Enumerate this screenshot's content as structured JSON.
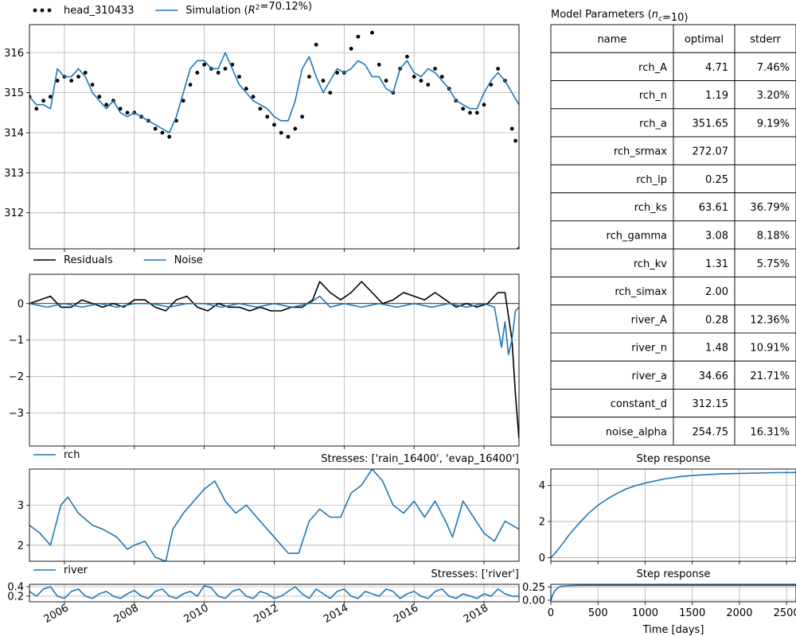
{
  "chart_data": [
    {
      "id": "head",
      "type": "line",
      "x_axis": "date",
      "xlim": [
        2005.0,
        2019.0
      ],
      "ylim": [
        311.1,
        316.7
      ],
      "yticks": [
        312,
        313,
        314,
        315,
        316
      ],
      "grid": true,
      "legend_placement": "top-left",
      "series": [
        {
          "name": "head_310433",
          "style": "dots",
          "color": "#000000",
          "x": [
            2005.0,
            2005.2,
            2005.4,
            2005.6,
            2005.8,
            2006.0,
            2006.2,
            2006.4,
            2006.6,
            2006.8,
            2007.0,
            2007.2,
            2007.4,
            2007.6,
            2007.8,
            2008.0,
            2008.2,
            2008.4,
            2008.6,
            2008.8,
            2009.0,
            2009.2,
            2009.4,
            2009.6,
            2009.8,
            2010.0,
            2010.2,
            2010.4,
            2010.6,
            2010.8,
            2011.0,
            2011.2,
            2011.4,
            2011.6,
            2011.8,
            2012.0,
            2012.2,
            2012.4,
            2012.6,
            2012.8,
            2013.0,
            2013.2,
            2013.4,
            2013.6,
            2013.8,
            2014.0,
            2014.2,
            2014.4,
            2014.6,
            2014.8,
            2015.0,
            2015.2,
            2015.4,
            2015.6,
            2015.8,
            2016.0,
            2016.2,
            2016.4,
            2016.6,
            2016.8,
            2017.0,
            2017.2,
            2017.4,
            2017.6,
            2017.8,
            2018.0,
            2018.2,
            2018.4,
            2018.6,
            2018.8,
            2018.9,
            2019.0
          ],
          "y": [
            314.9,
            314.6,
            314.8,
            314.9,
            315.3,
            315.4,
            315.3,
            315.4,
            315.5,
            315.2,
            314.9,
            314.7,
            314.8,
            314.6,
            314.5,
            314.5,
            314.4,
            314.3,
            314.1,
            314.0,
            313.9,
            314.3,
            314.8,
            315.2,
            315.5,
            315.7,
            315.6,
            315.5,
            315.6,
            315.7,
            315.4,
            315.1,
            314.9,
            314.6,
            314.4,
            314.2,
            314.0,
            313.9,
            314.1,
            314.4,
            315.4,
            316.2,
            315.3,
            315.0,
            315.5,
            315.5,
            316.1,
            316.4,
            316.8,
            316.5,
            315.7,
            315.3,
            315.0,
            315.6,
            315.9,
            315.4,
            315.3,
            315.2,
            315.6,
            315.4,
            315.1,
            314.8,
            314.6,
            314.5,
            314.5,
            314.7,
            315.2,
            315.6,
            315.3,
            314.1,
            313.8,
            311.1
          ]
        },
        {
          "name": "Simulation ($R^2$=70.12%)",
          "style": "line",
          "color": "#1f77b4",
          "x": [
            2005.0,
            2005.2,
            2005.4,
            2005.6,
            2005.8,
            2006.0,
            2006.2,
            2006.4,
            2006.6,
            2006.8,
            2007.0,
            2007.2,
            2007.4,
            2007.6,
            2007.8,
            2008.0,
            2008.2,
            2008.4,
            2008.6,
            2008.8,
            2009.0,
            2009.2,
            2009.4,
            2009.6,
            2009.8,
            2010.0,
            2010.2,
            2010.4,
            2010.6,
            2010.8,
            2011.0,
            2011.2,
            2011.4,
            2011.6,
            2011.8,
            2012.0,
            2012.2,
            2012.4,
            2012.6,
            2012.8,
            2013.0,
            2013.2,
            2013.4,
            2013.6,
            2013.8,
            2014.0,
            2014.2,
            2014.4,
            2014.6,
            2014.8,
            2015.0,
            2015.2,
            2015.4,
            2015.6,
            2015.8,
            2016.0,
            2016.2,
            2016.4,
            2016.6,
            2016.8,
            2017.0,
            2017.2,
            2017.4,
            2017.6,
            2017.8,
            2018.0,
            2018.2,
            2018.4,
            2018.6,
            2018.8,
            2019.0
          ],
          "y": [
            314.9,
            314.7,
            314.7,
            314.6,
            315.6,
            315.4,
            315.4,
            315.6,
            315.4,
            315.0,
            314.8,
            314.6,
            314.8,
            314.5,
            314.4,
            314.5,
            314.4,
            314.3,
            314.2,
            314.1,
            314.0,
            314.4,
            315.0,
            315.6,
            315.8,
            315.8,
            315.6,
            315.6,
            316.0,
            315.6,
            315.2,
            315.0,
            314.8,
            314.7,
            314.6,
            314.4,
            314.3,
            314.3,
            314.8,
            315.6,
            315.9,
            315.4,
            315.0,
            315.3,
            315.6,
            315.5,
            315.6,
            315.8,
            315.7,
            315.4,
            315.4,
            315.1,
            315.0,
            315.6,
            315.8,
            315.5,
            315.4,
            315.6,
            315.5,
            315.3,
            315.1,
            314.8,
            314.7,
            314.6,
            314.6,
            315.0,
            315.3,
            315.5,
            315.3,
            315.0,
            314.7
          ]
        }
      ]
    },
    {
      "id": "residuals",
      "type": "line",
      "x_axis": "date",
      "xlim": [
        2005.0,
        2019.0
      ],
      "ylim": [
        -3.9,
        0.8
      ],
      "yticks": [
        -3,
        -2,
        -1,
        0
      ],
      "zero_line": true,
      "grid": true,
      "legend_placement": "top-left",
      "series": [
        {
          "name": "Residuals",
          "color": "#000000",
          "x": [
            2005.0,
            2005.3,
            2005.6,
            2005.9,
            2006.2,
            2006.5,
            2006.8,
            2007.1,
            2007.4,
            2007.7,
            2008.0,
            2008.3,
            2008.6,
            2008.9,
            2009.2,
            2009.5,
            2009.8,
            2010.1,
            2010.4,
            2010.7,
            2011.0,
            2011.3,
            2011.6,
            2011.9,
            2012.2,
            2012.5,
            2012.8,
            2013.1,
            2013.3,
            2013.6,
            2013.9,
            2014.2,
            2014.5,
            2014.8,
            2015.1,
            2015.4,
            2015.7,
            2016.0,
            2016.3,
            2016.6,
            2016.9,
            2017.2,
            2017.5,
            2017.8,
            2018.1,
            2018.4,
            2018.6,
            2018.8,
            2018.9,
            2019.0
          ],
          "y": [
            0.0,
            0.1,
            0.2,
            -0.1,
            -0.1,
            0.1,
            0.0,
            -0.1,
            0.0,
            -0.1,
            0.1,
            0.1,
            -0.1,
            -0.2,
            0.1,
            0.2,
            -0.1,
            -0.2,
            0.0,
            -0.1,
            -0.1,
            -0.2,
            -0.1,
            -0.2,
            -0.2,
            -0.1,
            -0.1,
            0.1,
            0.6,
            0.3,
            0.1,
            0.3,
            0.6,
            0.3,
            0.0,
            0.1,
            0.3,
            0.2,
            0.1,
            0.3,
            0.1,
            -0.1,
            0.0,
            -0.1,
            0.0,
            0.3,
            0.3,
            -1.0,
            -2.5,
            -3.7
          ]
        },
        {
          "name": "Noise",
          "color": "#1f77b4",
          "x": [
            2005.0,
            2005.5,
            2006.0,
            2006.5,
            2007.0,
            2007.5,
            2008.0,
            2008.5,
            2009.0,
            2009.5,
            2010.0,
            2010.5,
            2011.0,
            2011.5,
            2012.0,
            2012.5,
            2013.0,
            2013.3,
            2013.6,
            2014.0,
            2014.5,
            2015.0,
            2015.5,
            2016.0,
            2016.5,
            2017.0,
            2017.5,
            2018.0,
            2018.3,
            2018.5,
            2018.6,
            2018.7,
            2018.8,
            2018.9,
            2019.0
          ],
          "y": [
            0.0,
            -0.1,
            0.0,
            -0.1,
            0.0,
            -0.1,
            0.0,
            0.0,
            -0.1,
            0.0,
            0.0,
            -0.1,
            0.0,
            -0.1,
            0.0,
            -0.1,
            0.0,
            0.2,
            -0.1,
            0.0,
            -0.1,
            0.0,
            -0.1,
            0.0,
            -0.1,
            0.0,
            -0.1,
            0.0,
            -0.1,
            -1.2,
            -0.5,
            -1.4,
            -1.0,
            -0.2,
            -0.1
          ]
        }
      ]
    },
    {
      "id": "rch",
      "type": "line",
      "x_axis": "date",
      "xlim": [
        2005.0,
        2019.0
      ],
      "ylim": [
        1.6,
        3.9
      ],
      "yticks": [
        2,
        3
      ],
      "grid": true,
      "legend_placement": "top-left",
      "title_right": "Stresses: ['rain_16400', 'evap_16400']",
      "series": [
        {
          "name": "rch",
          "color": "#1f77b4",
          "x": [
            2005.0,
            2005.3,
            2005.6,
            2005.9,
            2006.1,
            2006.4,
            2006.8,
            2007.1,
            2007.5,
            2007.8,
            2008.0,
            2008.3,
            2008.6,
            2008.9,
            2009.1,
            2009.4,
            2009.7,
            2010.0,
            2010.3,
            2010.6,
            2010.9,
            2011.2,
            2011.5,
            2011.8,
            2012.0,
            2012.4,
            2012.7,
            2013.0,
            2013.3,
            2013.6,
            2013.9,
            2014.2,
            2014.5,
            2014.8,
            2015.1,
            2015.4,
            2015.7,
            2016.0,
            2016.3,
            2016.6,
            2016.9,
            2017.1,
            2017.4,
            2017.7,
            2018.0,
            2018.3,
            2018.6,
            2018.8,
            2019.0
          ],
          "y": [
            2.5,
            2.3,
            2.0,
            3.0,
            3.2,
            2.8,
            2.5,
            2.4,
            2.2,
            1.9,
            2.0,
            2.1,
            1.7,
            1.6,
            2.4,
            2.8,
            3.1,
            3.4,
            3.6,
            3.1,
            2.8,
            3.0,
            2.7,
            2.4,
            2.2,
            1.8,
            1.8,
            2.6,
            2.9,
            2.7,
            2.7,
            3.3,
            3.5,
            3.9,
            3.6,
            3.0,
            2.8,
            3.1,
            2.7,
            3.1,
            2.6,
            2.2,
            3.1,
            2.7,
            2.3,
            2.1,
            2.6,
            2.5,
            2.4
          ]
        }
      ]
    },
    {
      "id": "river",
      "type": "line",
      "x_axis": "date",
      "xlim": [
        2005.0,
        2019.0
      ],
      "ylim": [
        0.08,
        0.45
      ],
      "yticks": [
        0.2,
        0.4
      ],
      "grid": true,
      "legend_placement": "top-left",
      "title_right": "Stresses: ['river']",
      "xticks": [
        "2006",
        "2008",
        "2010",
        "2012",
        "2014",
        "2016",
        "2018"
      ],
      "series": [
        {
          "name": "river",
          "color": "#1f77b4",
          "x": [
            2005.0,
            2005.2,
            2005.4,
            2005.6,
            2005.8,
            2006.0,
            2006.2,
            2006.4,
            2006.6,
            2006.8,
            2007.0,
            2007.2,
            2007.4,
            2007.6,
            2007.8,
            2008.0,
            2008.2,
            2008.4,
            2008.6,
            2008.8,
            2009.0,
            2009.2,
            2009.4,
            2009.6,
            2009.8,
            2010.0,
            2010.2,
            2010.4,
            2010.6,
            2010.8,
            2011.0,
            2011.2,
            2011.4,
            2011.6,
            2011.8,
            2012.0,
            2012.2,
            2012.4,
            2012.6,
            2012.8,
            2013.0,
            2013.2,
            2013.4,
            2013.6,
            2013.8,
            2014.0,
            2014.2,
            2014.4,
            2014.6,
            2014.8,
            2015.0,
            2015.2,
            2015.4,
            2015.6,
            2015.8,
            2016.0,
            2016.2,
            2016.4,
            2016.6,
            2016.8,
            2017.0,
            2017.2,
            2017.4,
            2017.6,
            2017.8,
            2018.0,
            2018.2,
            2018.4,
            2018.6,
            2018.8,
            2019.0
          ],
          "y": [
            0.3,
            0.2,
            0.35,
            0.4,
            0.2,
            0.15,
            0.3,
            0.35,
            0.2,
            0.15,
            0.25,
            0.3,
            0.2,
            0.15,
            0.25,
            0.32,
            0.2,
            0.15,
            0.3,
            0.35,
            0.2,
            0.15,
            0.25,
            0.3,
            0.2,
            0.42,
            0.38,
            0.2,
            0.15,
            0.3,
            0.35,
            0.2,
            0.15,
            0.3,
            0.25,
            0.15,
            0.2,
            0.3,
            0.4,
            0.25,
            0.15,
            0.35,
            0.25,
            0.15,
            0.3,
            0.35,
            0.2,
            0.15,
            0.3,
            0.25,
            0.2,
            0.35,
            0.3,
            0.15,
            0.25,
            0.3,
            0.2,
            0.15,
            0.3,
            0.35,
            0.2,
            0.15,
            0.25,
            0.2,
            0.15,
            0.25,
            0.2,
            0.35,
            0.25,
            0.2,
            0.2
          ]
        }
      ]
    },
    {
      "id": "step_rch",
      "type": "line",
      "title": "Step response",
      "xlim": [
        0,
        2600
      ],
      "ylim": [
        -0.2,
        4.9
      ],
      "yticks": [
        0,
        2,
        4
      ],
      "xtick_values": [
        0,
        500,
        1000,
        1500,
        2000,
        2500
      ],
      "grid": true,
      "series": [
        {
          "color": "#1f77b4",
          "x": [
            0,
            50,
            100,
            200,
            300,
            400,
            500,
            600,
            700,
            800,
            900,
            1000,
            1200,
            1400,
            1600,
            1800,
            2000,
            2200,
            2400,
            2600
          ],
          "y": [
            0,
            0.28,
            0.6,
            1.3,
            1.9,
            2.45,
            2.9,
            3.25,
            3.55,
            3.8,
            3.98,
            4.12,
            4.35,
            4.5,
            4.58,
            4.63,
            4.66,
            4.68,
            4.7,
            4.71
          ]
        }
      ]
    },
    {
      "id": "step_river",
      "type": "line",
      "title": "Step response",
      "xlim": [
        0,
        2600
      ],
      "ylim": [
        -0.03,
        0.3
      ],
      "yticks": [
        0.0,
        0.25
      ],
      "ytick_labels": [
        "0.00",
        "0.25"
      ],
      "xtick_values": [
        0,
        500,
        1000,
        1500,
        2000,
        2500
      ],
      "xlabel": "Time [days]",
      "grid": true,
      "series": [
        {
          "color": "#1f77b4",
          "x": [
            0,
            20,
            40,
            60,
            80,
            100,
            150,
            200,
            300,
            400,
            600,
            1000,
            2600
          ],
          "y": [
            0,
            0.1,
            0.17,
            0.21,
            0.24,
            0.26,
            0.27,
            0.275,
            0.28,
            0.28,
            0.28,
            0.28,
            0.28
          ]
        }
      ]
    }
  ],
  "params_table": {
    "title": "Model Parameters ($n_c$=10)",
    "columns": [
      "name",
      "optimal",
      "stderr"
    ],
    "rows": [
      [
        "rch_A",
        "4.71",
        "7.46%"
      ],
      [
        "rch_n",
        "1.19",
        "3.20%"
      ],
      [
        "rch_a",
        "351.65",
        "9.19%"
      ],
      [
        "rch_srmax",
        "272.07",
        ""
      ],
      [
        "rch_lp",
        "0.25",
        ""
      ],
      [
        "rch_ks",
        "63.61",
        "36.79%"
      ],
      [
        "rch_gamma",
        "3.08",
        "8.18%"
      ],
      [
        "rch_kv",
        "1.31",
        "5.75%"
      ],
      [
        "rch_simax",
        "2.00",
        ""
      ],
      [
        "river_A",
        "0.28",
        "12.36%"
      ],
      [
        "river_n",
        "1.48",
        "10.91%"
      ],
      [
        "river_a",
        "34.66",
        "21.71%"
      ],
      [
        "constant_d",
        "312.15",
        ""
      ],
      [
        "noise_alpha",
        "254.75",
        "16.31%"
      ]
    ]
  }
}
